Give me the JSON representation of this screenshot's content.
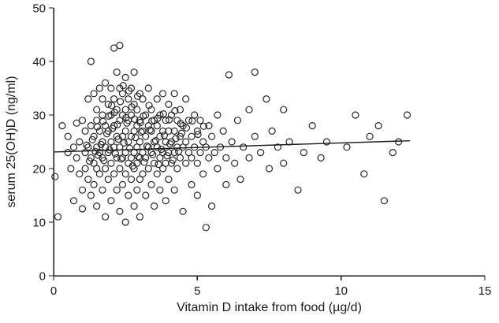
{
  "figure": {
    "background": "#ffffff"
  },
  "chart_data": {
    "type": "scatter",
    "title": "",
    "xlabel": "Vitamin D intake from food (µg/d)",
    "ylabel": "serum 25(OH)D (ng/ml)",
    "xlim": [
      0,
      15
    ],
    "ylim": [
      0,
      50
    ],
    "xticks": [
      0,
      5,
      10,
      15
    ],
    "yticks": [
      0,
      10,
      20,
      30,
      40,
      50
    ],
    "grid": false,
    "legend": "none",
    "marker": {
      "shape": "open-circle",
      "radius": 4,
      "color": "#262626"
    },
    "axis_color": "#1a1a1a",
    "regression_line": {
      "x": [
        0,
        12.4
      ],
      "y": [
        23.1,
        25.2
      ],
      "color": "#1a1a1a"
    },
    "points": [
      [
        0.05,
        18.5
      ],
      [
        0.15,
        11
      ],
      [
        0.3,
        28
      ],
      [
        0.5,
        23
      ],
      [
        0.5,
        26
      ],
      [
        0.6,
        20
      ],
      [
        0.7,
        24
      ],
      [
        0.7,
        14
      ],
      [
        0.8,
        28.5
      ],
      [
        0.8,
        22
      ],
      [
        0.9,
        19
      ],
      [
        0.9,
        25
      ],
      [
        1.0,
        29
      ],
      [
        1.0,
        16
      ],
      [
        1.0,
        12.5
      ],
      [
        1.1,
        23
      ],
      [
        1.1,
        27
      ],
      [
        1.1,
        20
      ],
      [
        1.2,
        24
      ],
      [
        1.2,
        33
      ],
      [
        1.2,
        18
      ],
      [
        1.3,
        40
      ],
      [
        1.3,
        28
      ],
      [
        1.3,
        22
      ],
      [
        1.3,
        15
      ],
      [
        1.4,
        34
      ],
      [
        1.4,
        26
      ],
      [
        1.4,
        21
      ],
      [
        1.4,
        17
      ],
      [
        1.5,
        31
      ],
      [
        1.5,
        29
      ],
      [
        1.5,
        24
      ],
      [
        1.5,
        20
      ],
      [
        1.5,
        13
      ],
      [
        1.6,
        35
      ],
      [
        1.6,
        27
      ],
      [
        1.6,
        23
      ],
      [
        1.6,
        19
      ],
      [
        1.7,
        33
      ],
      [
        1.7,
        30
      ],
      [
        1.7,
        25
      ],
      [
        1.7,
        22
      ],
      [
        1.7,
        16
      ],
      [
        1.8,
        36
      ],
      [
        1.8,
        28
      ],
      [
        1.8,
        24
      ],
      [
        1.8,
        20
      ],
      [
        1.8,
        11
      ],
      [
        1.9,
        32
      ],
      [
        1.9,
        27
      ],
      [
        1.9,
        23
      ],
      [
        1.9,
        18
      ],
      [
        2.0,
        35
      ],
      [
        2.0,
        30
      ],
      [
        2.0,
        25
      ],
      [
        2.0,
        21
      ],
      [
        2.0,
        14
      ],
      [
        2.1,
        42.5
      ],
      [
        2.1,
        33
      ],
      [
        2.1,
        28
      ],
      [
        2.1,
        24
      ],
      [
        2.1,
        19
      ],
      [
        2.2,
        38
      ],
      [
        2.2,
        31
      ],
      [
        2.2,
        26
      ],
      [
        2.2,
        22
      ],
      [
        2.2,
        16
      ],
      [
        2.3,
        43
      ],
      [
        2.3,
        35
      ],
      [
        2.3,
        29
      ],
      [
        2.3,
        24
      ],
      [
        2.3,
        20
      ],
      [
        2.3,
        12
      ],
      [
        2.4,
        34
      ],
      [
        2.4,
        30
      ],
      [
        2.4,
        26
      ],
      [
        2.4,
        22
      ],
      [
        2.4,
        17
      ],
      [
        2.5,
        37
      ],
      [
        2.5,
        31
      ],
      [
        2.5,
        27
      ],
      [
        2.5,
        23
      ],
      [
        2.5,
        19
      ],
      [
        2.5,
        10
      ],
      [
        2.6,
        33
      ],
      [
        2.6,
        29
      ],
      [
        2.6,
        25
      ],
      [
        2.6,
        21
      ],
      [
        2.6,
        15
      ],
      [
        2.7,
        35
      ],
      [
        2.7,
        30
      ],
      [
        2.7,
        26
      ],
      [
        2.7,
        22
      ],
      [
        2.7,
        18
      ],
      [
        2.8,
        38
      ],
      [
        2.8,
        32
      ],
      [
        2.8,
        27
      ],
      [
        2.8,
        23
      ],
      [
        2.8,
        20
      ],
      [
        2.8,
        13
      ],
      [
        2.9,
        31
      ],
      [
        2.9,
        28
      ],
      [
        2.9,
        24
      ],
      [
        2.9,
        21
      ],
      [
        2.9,
        16
      ],
      [
        3.0,
        34
      ],
      [
        3.0,
        29
      ],
      [
        3.0,
        25
      ],
      [
        3.0,
        22
      ],
      [
        3.0,
        18
      ],
      [
        3.0,
        11
      ],
      [
        3.1,
        33
      ],
      [
        3.1,
        27
      ],
      [
        3.1,
        23
      ],
      [
        3.1,
        19
      ],
      [
        3.2,
        30
      ],
      [
        3.2,
        26
      ],
      [
        3.2,
        22
      ],
      [
        3.2,
        15
      ],
      [
        3.3,
        35
      ],
      [
        3.3,
        28
      ],
      [
        3.3,
        24
      ],
      [
        3.3,
        20
      ],
      [
        3.4,
        31
      ],
      [
        3.4,
        27
      ],
      [
        3.4,
        23
      ],
      [
        3.4,
        17
      ],
      [
        3.5,
        29
      ],
      [
        3.5,
        25
      ],
      [
        3.5,
        21
      ],
      [
        3.5,
        13
      ],
      [
        3.6,
        33
      ],
      [
        3.6,
        28
      ],
      [
        3.6,
        24
      ],
      [
        3.6,
        19
      ],
      [
        3.7,
        30
      ],
      [
        3.7,
        26
      ],
      [
        3.7,
        22
      ],
      [
        3.7,
        16
      ],
      [
        3.8,
        34
      ],
      [
        3.8,
        27
      ],
      [
        3.8,
        23
      ],
      [
        3.8,
        20
      ],
      [
        3.9,
        29
      ],
      [
        3.9,
        25
      ],
      [
        3.9,
        21
      ],
      [
        3.9,
        14
      ],
      [
        4.0,
        32
      ],
      [
        4.0,
        27
      ],
      [
        4.0,
        23
      ],
      [
        4.0,
        18
      ],
      [
        4.1,
        30
      ],
      [
        4.1,
        25
      ],
      [
        4.1,
        21
      ],
      [
        4.2,
        34
      ],
      [
        4.2,
        27
      ],
      [
        4.2,
        23
      ],
      [
        4.2,
        16
      ],
      [
        4.3,
        29
      ],
      [
        4.3,
        24
      ],
      [
        4.3,
        20
      ],
      [
        4.4,
        31
      ],
      [
        4.4,
        26
      ],
      [
        4.4,
        22
      ],
      [
        4.5,
        28
      ],
      [
        4.5,
        24
      ],
      [
        4.5,
        12
      ],
      [
        4.6,
        33
      ],
      [
        4.6,
        25
      ],
      [
        4.6,
        21
      ],
      [
        4.7,
        29
      ],
      [
        4.7,
        23
      ],
      [
        4.8,
        26
      ],
      [
        4.8,
        22
      ],
      [
        4.8,
        17
      ],
      [
        4.9,
        30
      ],
      [
        4.9,
        24
      ],
      [
        5.0,
        27
      ],
      [
        5.0,
        21
      ],
      [
        5.0,
        15
      ],
      [
        5.1,
        29
      ],
      [
        5.1,
        23
      ],
      [
        5.2,
        25
      ],
      [
        5.2,
        19
      ],
      [
        5.3,
        9
      ],
      [
        5.3,
        24
      ],
      [
        5.4,
        28
      ],
      [
        5.4,
        22
      ],
      [
        5.5,
        26
      ],
      [
        5.5,
        13
      ],
      [
        5.6,
        23
      ],
      [
        5.7,
        30
      ],
      [
        5.7,
        20
      ],
      [
        5.8,
        24
      ],
      [
        5.9,
        27
      ],
      [
        6.0,
        22
      ],
      [
        6.0,
        17
      ],
      [
        6.1,
        37.5
      ],
      [
        6.2,
        25
      ],
      [
        6.3,
        21
      ],
      [
        6.4,
        29
      ],
      [
        6.5,
        18
      ],
      [
        6.6,
        24
      ],
      [
        6.8,
        31
      ],
      [
        6.8,
        22
      ],
      [
        7.0,
        38
      ],
      [
        7.0,
        26
      ],
      [
        7.2,
        23
      ],
      [
        7.4,
        33
      ],
      [
        7.5,
        20
      ],
      [
        7.6,
        27
      ],
      [
        7.8,
        24
      ],
      [
        8.0,
        31
      ],
      [
        8.0,
        21
      ],
      [
        8.2,
        25
      ],
      [
        8.5,
        16
      ],
      [
        8.7,
        23
      ],
      [
        9.0,
        28
      ],
      [
        9.3,
        22
      ],
      [
        9.5,
        25
      ],
      [
        10.2,
        24
      ],
      [
        10.5,
        30
      ],
      [
        10.8,
        19
      ],
      [
        11.0,
        26
      ],
      [
        11.3,
        28
      ],
      [
        11.5,
        14
      ],
      [
        11.8,
        23
      ],
      [
        12.0,
        25
      ],
      [
        12.3,
        30
      ],
      [
        1.55,
        22.5
      ],
      [
        1.65,
        24.5
      ],
      [
        1.75,
        21.5
      ],
      [
        1.85,
        26.5
      ],
      [
        1.95,
        23.5
      ],
      [
        2.05,
        27.5
      ],
      [
        2.15,
        22.8
      ],
      [
        2.25,
        25.5
      ],
      [
        2.35,
        21.8
      ],
      [
        2.45,
        24.8
      ],
      [
        2.55,
        28.5
      ],
      [
        2.65,
        23.8
      ],
      [
        2.75,
        20.5
      ],
      [
        2.85,
        25.8
      ],
      [
        2.95,
        22.2
      ],
      [
        3.05,
        26.8
      ],
      [
        3.15,
        21.2
      ],
      [
        3.25,
        24.2
      ],
      [
        3.35,
        27.2
      ],
      [
        3.45,
        22.6
      ],
      [
        3.55,
        25.2
      ],
      [
        3.65,
        20.8
      ],
      [
        3.75,
        23.6
      ],
      [
        3.85,
        26.2
      ],
      [
        3.95,
        22.4
      ],
      [
        4.05,
        24.6
      ],
      [
        4.15,
        21.6
      ],
      [
        4.25,
        25.6
      ],
      [
        4.35,
        23.2
      ],
      [
        4.45,
        26.6
      ],
      [
        1.45,
        23.2
      ],
      [
        1.35,
        25.4
      ],
      [
        1.25,
        21.4
      ],
      [
        1.15,
        24.4
      ],
      [
        2.12,
        30.5
      ],
      [
        2.32,
        32.5
      ],
      [
        2.52,
        29.5
      ],
      [
        2.72,
        31.5
      ],
      [
        2.92,
        33.5
      ],
      [
        3.12,
        29.8
      ],
      [
        3.32,
        31.8
      ],
      [
        2.42,
        35.5
      ],
      [
        2.62,
        34.5
      ],
      [
        1.52,
        27.8
      ],
      [
        1.72,
        28.8
      ],
      [
        1.92,
        29.8
      ],
      [
        2.02,
        31.8
      ],
      [
        2.22,
        28.2
      ],
      [
        2.82,
        29.2
      ],
      [
        3.02,
        28.6
      ],
      [
        3.42,
        28.9
      ],
      [
        3.62,
        29.4
      ],
      [
        3.82,
        30.2
      ],
      [
        4.02,
        29.1
      ],
      [
        4.22,
        30.8
      ],
      [
        4.42,
        28.4
      ],
      [
        4.62,
        27.6
      ],
      [
        4.82,
        28.9
      ],
      [
        5.02,
        26.4
      ],
      [
        5.22,
        27.9
      ]
    ]
  }
}
